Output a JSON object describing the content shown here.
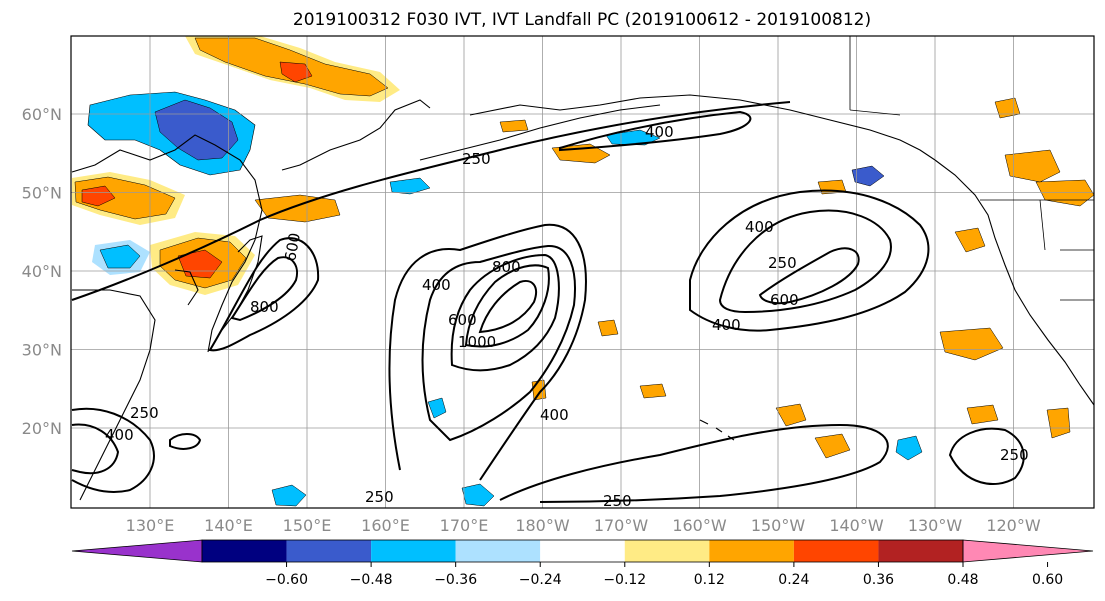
{
  "title": "2019100312 F030 IVT, IVT Landfall PC (2019100612 - 2019100812)",
  "map": {
    "lon_labels": [
      "130°E",
      "140°E",
      "150°E",
      "160°E",
      "170°E",
      "180°W",
      "170°W",
      "160°W",
      "150°W",
      "140°W",
      "130°W",
      "120°W"
    ],
    "lat_labels": [
      "60°N",
      "50°N",
      "40°N",
      "30°N",
      "20°N"
    ],
    "contour_levels": [
      "250",
      "400",
      "600",
      "800",
      "1000"
    ],
    "contour_labels": [
      "400",
      "250",
      "400",
      "800",
      "600",
      "800",
      "1000",
      "400",
      "600",
      "400",
      "250",
      "600",
      "400",
      "250",
      "400",
      "250",
      "250",
      "250"
    ]
  },
  "colorbar": {
    "ticks": [
      "−0.60",
      "−0.48",
      "−0.36",
      "−0.24",
      "−0.12",
      "0.12",
      "0.24",
      "0.36",
      "0.48",
      "0.60"
    ],
    "colors": [
      "#9932CC",
      "#000080",
      "#3A5BCC",
      "#00BFFF",
      "#ADE1FF",
      "#FFFFFF",
      "#FFEB85",
      "#FFA500",
      "#FF4500",
      "#B22222",
      "#FF88B4"
    ],
    "extend": "both"
  }
}
